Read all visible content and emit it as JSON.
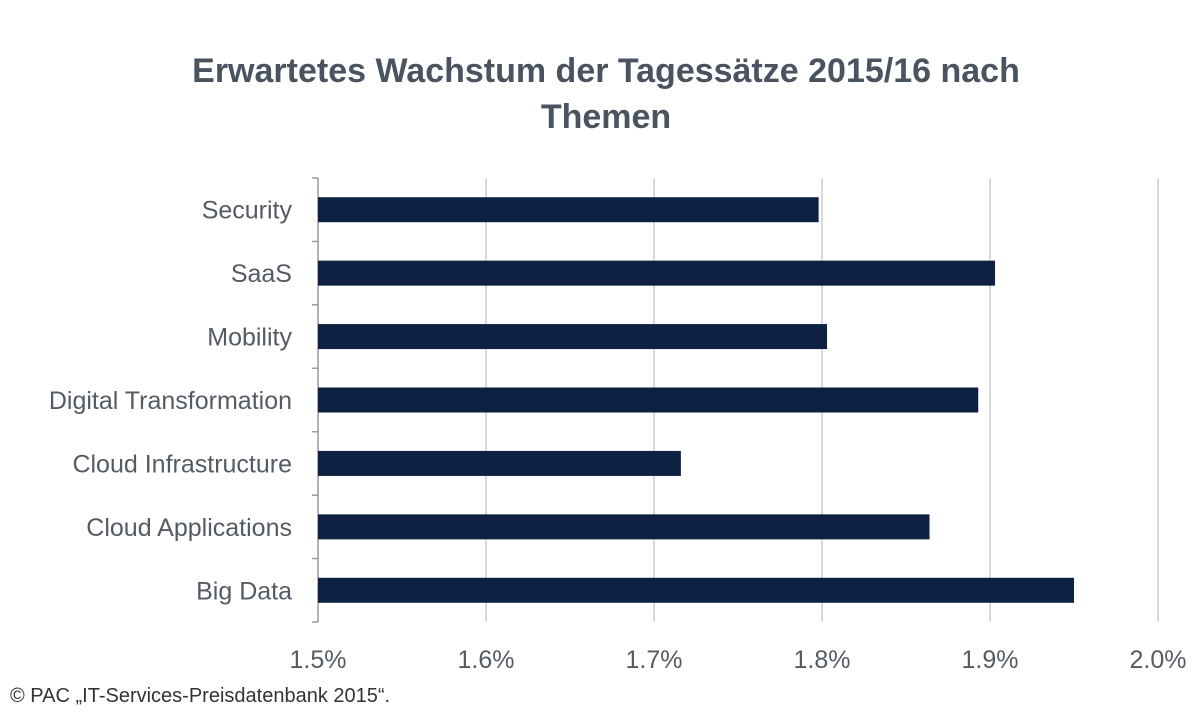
{
  "chart_data": {
    "type": "bar",
    "orientation": "horizontal",
    "title_lines": [
      "Erwartetes Wachstum der Tagessätze 2015/16 nach",
      "Themen"
    ],
    "categories": [
      "Security",
      "SaaS",
      "Mobility",
      "Digital Transformation",
      "Cloud Infrastructure",
      "Cloud Applications",
      "Big Data"
    ],
    "values": [
      1.798,
      1.903,
      1.803,
      1.893,
      1.716,
      1.864,
      1.95
    ],
    "xlim": [
      1.5,
      2.0
    ],
    "x_ticks": [
      1.5,
      1.6,
      1.7,
      1.8,
      1.9,
      2.0
    ],
    "x_tick_labels": [
      "1.5%",
      "1.6%",
      "1.7%",
      "1.8%",
      "1.9%",
      "2.0%"
    ],
    "xlabel": "",
    "ylabel": "",
    "grid": "vertical",
    "legend": "none",
    "colors": {
      "bar": "#0e2142",
      "grid": "#bdbdbd",
      "axis": "#9a9a9a",
      "title": "#4a5360",
      "label": "#555b63"
    }
  },
  "source": "© PAC „IT-Services-Preisdatenbank 2015“."
}
